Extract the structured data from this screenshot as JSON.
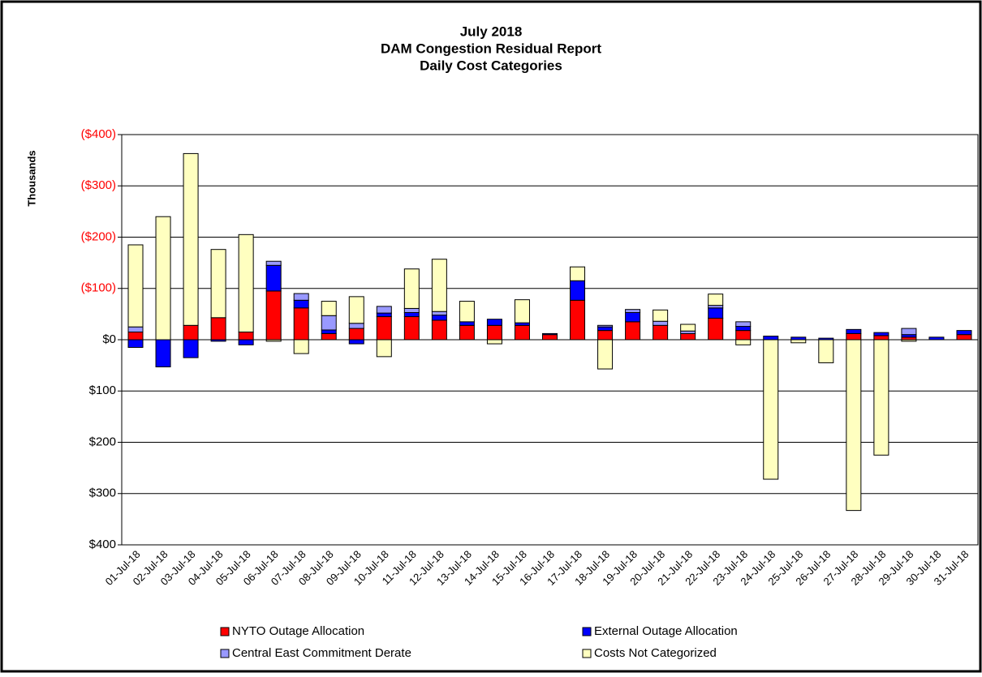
{
  "chart_data": {
    "type": "stacked_bar",
    "title_lines": [
      "July 2018",
      "DAM Congestion Residual Report",
      "Daily Cost Categories"
    ],
    "y_label": "Thousands",
    "categories": [
      "01-Jul-18",
      "02-Jul-18",
      "03-Jul-18",
      "04-Jul-18",
      "05-Jul-18",
      "06-Jul-18",
      "07-Jul-18",
      "08-Jul-18",
      "09-Jul-18",
      "10-Jul-18",
      "11-Jul-18",
      "12-Jul-18",
      "13-Jul-18",
      "14-Jul-18",
      "15-Jul-18",
      "16-Jul-18",
      "17-Jul-18",
      "18-Jul-18",
      "19-Jul-18",
      "20-Jul-18",
      "21-Jul-18",
      "22-Jul-18",
      "23-Jul-18",
      "24-Jul-18",
      "25-Jul-18",
      "26-Jul-18",
      "27-Jul-18",
      "28-Jul-18",
      "29-Jul-18",
      "30-Jul-18",
      "31-Jul-18"
    ],
    "series": [
      {
        "name": "NYTO Outage Allocation",
        "color": "#ff0000",
        "values": [
          -15,
          null,
          -28,
          -43,
          -15,
          -95,
          -62,
          -12,
          -22,
          -45,
          -45,
          -38,
          -28,
          -28,
          -28,
          -10,
          -77,
          -18,
          -35,
          -28,
          -12,
          -42,
          -18,
          null,
          null,
          null,
          -12,
          -8,
          -5,
          null,
          -10
        ]
      },
      {
        "name": "External Outage Allocation",
        "color": "#0000ff",
        "values": [
          15,
          53,
          35,
          3,
          10,
          -50,
          -15,
          -7,
          8,
          -7,
          -8,
          -10,
          -7,
          -12,
          -5,
          -2,
          -38,
          -7,
          -18,
          null,
          null,
          -20,
          -8,
          -7,
          -5,
          -3,
          -8,
          -6,
          -5,
          -5,
          -8
        ]
      },
      {
        "name": "Central East Commitment Derate",
        "color": "#9999ff",
        "values": [
          -10,
          null,
          null,
          null,
          null,
          -8,
          -13,
          -28,
          -10,
          -13,
          -8,
          -7,
          null,
          null,
          null,
          null,
          null,
          -3,
          -6,
          -8,
          -5,
          -5,
          -9,
          null,
          null,
          null,
          null,
          null,
          -12,
          null,
          null
        ]
      },
      {
        "name": "Costs Not Categorized",
        "color": "#ffffc0",
        "values": [
          -160,
          -240,
          -335,
          -133,
          -190,
          3,
          27,
          -28,
          -52,
          33,
          -77,
          -102,
          -40,
          8,
          -45,
          null,
          -27,
          57,
          null,
          -22,
          -13,
          -22,
          10,
          272,
          6,
          45,
          333,
          225,
          3,
          null,
          null
        ]
      }
    ],
    "ylim": [
      -400,
      400
    ],
    "y_reversed": true,
    "yticks": [
      {
        "value": -400,
        "label": "($400)"
      },
      {
        "value": -300,
        "label": "($300)"
      },
      {
        "value": -200,
        "label": "($200)"
      },
      {
        "value": -100,
        "label": "($100)"
      },
      {
        "value": 0,
        "label": "$0"
      },
      {
        "value": 100,
        "label": "$100"
      },
      {
        "value": 200,
        "label": "$200"
      },
      {
        "value": 300,
        "label": "$300"
      },
      {
        "value": 400,
        "label": "$400"
      }
    ],
    "negative_tick_color": "#ff0000",
    "grid": true,
    "legend": "bottom"
  }
}
